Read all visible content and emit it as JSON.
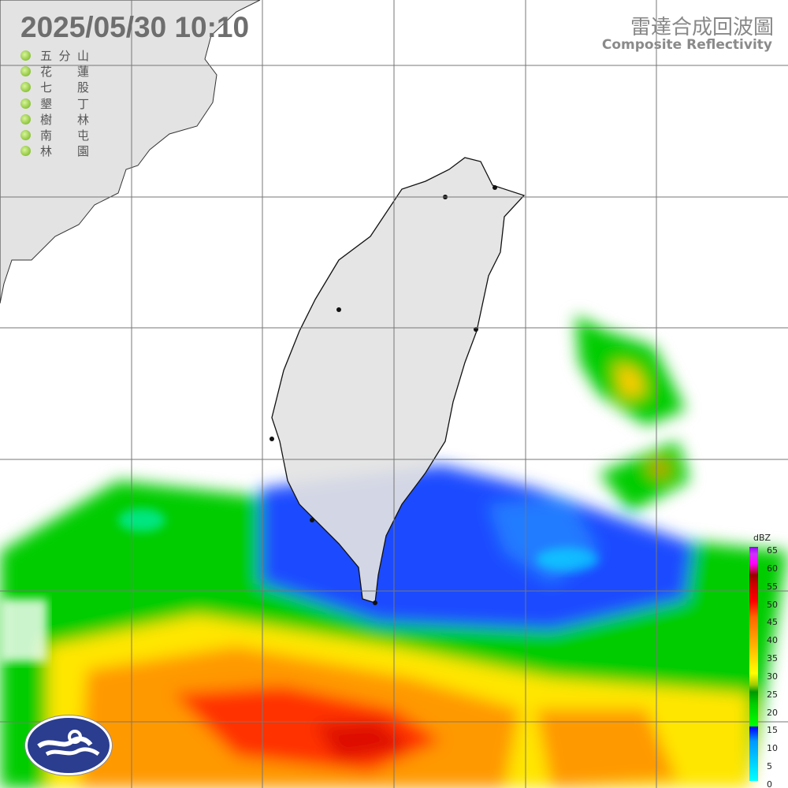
{
  "header": {
    "datetime": "2025/05/30  10:10",
    "title_zh": "雷達合成回波圖",
    "title_en": "Composite Reflectivity"
  },
  "stations": [
    {
      "name": "五分山",
      "status": "online"
    },
    {
      "name": "花蓮",
      "status": "online"
    },
    {
      "name": "七股",
      "status": "online"
    },
    {
      "name": "墾丁",
      "status": "online"
    },
    {
      "name": "樹林",
      "status": "online"
    },
    {
      "name": "南屯",
      "status": "online"
    },
    {
      "name": "林園",
      "status": "online"
    }
  ],
  "colorbar": {
    "unit": "dBZ",
    "ticks": [
      "65",
      "60",
      "55",
      "50",
      "45",
      "40",
      "35",
      "30",
      "25",
      "20",
      "15",
      "10",
      "5",
      "0"
    ],
    "range": [
      0,
      65
    ]
  },
  "colors": {
    "land": "#e3e3e3",
    "grid": "#777777",
    "station_dot": "#8cc43a",
    "logo": "#2a3d8f"
  },
  "logo": {
    "icon": "cwa-cloud-wave-logo"
  }
}
